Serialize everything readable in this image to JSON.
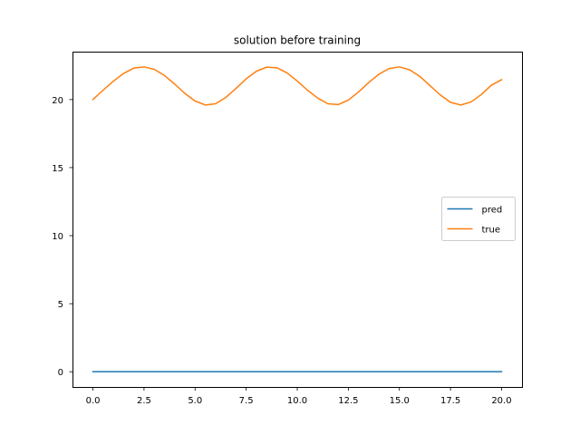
{
  "chart_data": {
    "type": "line",
    "title": "solution before training",
    "xlabel": "",
    "ylabel": "",
    "xlim": [
      -1.0,
      21.0
    ],
    "ylim": [
      -1.12,
      23.52
    ],
    "x_ticks": [
      0.0,
      2.5,
      5.0,
      7.5,
      10.0,
      12.5,
      15.0,
      17.5,
      20.0
    ],
    "x_tick_labels": [
      "0.0",
      "2.5",
      "5.0",
      "7.5",
      "10.0",
      "12.5",
      "15.0",
      "17.5",
      "20.0"
    ],
    "y_ticks": [
      0,
      5,
      10,
      15,
      20
    ],
    "y_tick_labels": [
      "0",
      "5",
      "10",
      "15",
      "20"
    ],
    "grid": false,
    "legend_position": "center-right",
    "series": [
      {
        "name": "pred",
        "color": "#1f77b4",
        "x": [
          0.0,
          20.0
        ],
        "y": [
          0.0,
          0.0
        ]
      },
      {
        "name": "true",
        "color": "#ff7f0e",
        "x": [
          0.0,
          0.5,
          1.0,
          1.5,
          2.0,
          2.5,
          3.0,
          3.5,
          4.0,
          4.5,
          5.0,
          5.5,
          6.0,
          6.5,
          7.0,
          7.5,
          8.0,
          8.5,
          9.0,
          9.5,
          10.0,
          10.5,
          11.0,
          11.5,
          12.0,
          12.5,
          13.0,
          13.5,
          14.0,
          14.5,
          15.0,
          15.5,
          16.0,
          16.5,
          17.0,
          17.5,
          18.0,
          18.5,
          19.0,
          19.5,
          20.0
        ],
        "y": [
          20.0,
          20.69,
          21.35,
          21.92,
          22.31,
          22.4,
          22.22,
          21.77,
          21.14,
          20.45,
          19.89,
          19.6,
          19.69,
          20.15,
          20.82,
          21.52,
          22.08,
          22.38,
          22.34,
          21.96,
          21.36,
          20.69,
          20.11,
          19.69,
          19.63,
          19.96,
          20.56,
          21.25,
          21.87,
          22.28,
          22.4,
          22.19,
          21.7,
          21.02,
          20.34,
          19.8,
          19.6,
          19.82,
          20.36,
          21.05,
          21.46
        ]
      }
    ]
  }
}
